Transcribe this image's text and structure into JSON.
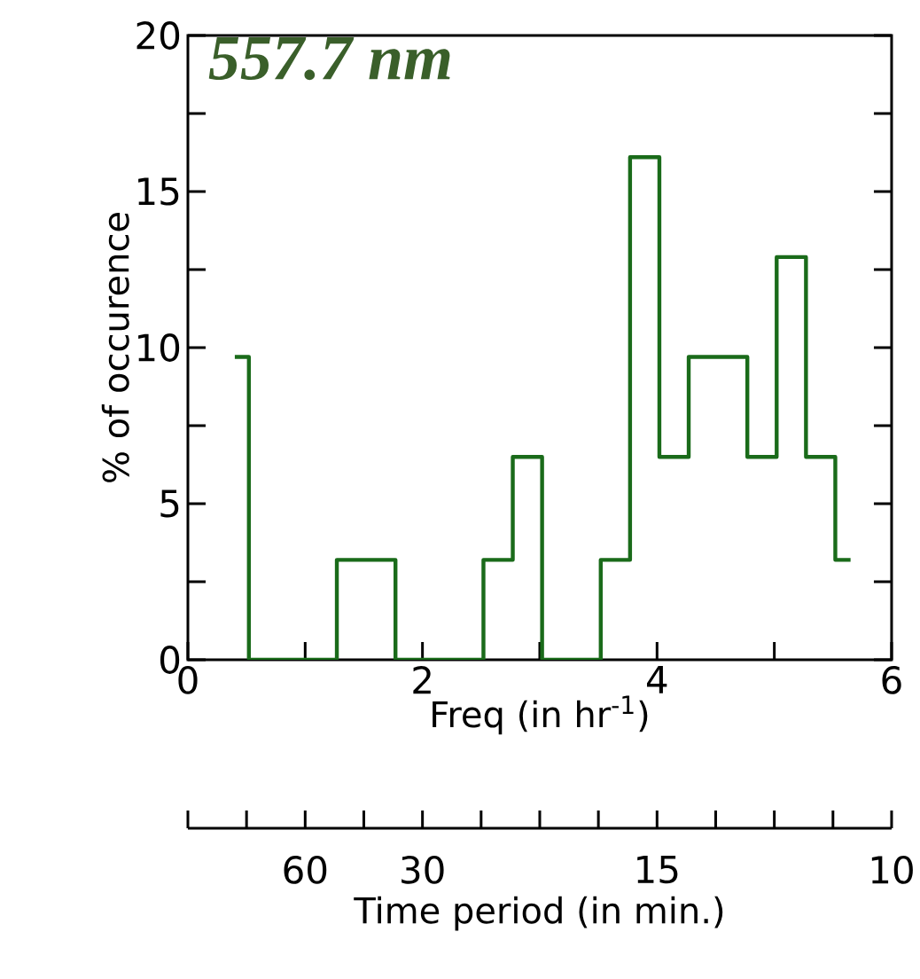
{
  "chart_data": {
    "type": "histogram",
    "title": "557.7 nm",
    "xlabel": "Freq (in hr$^{-1}$)",
    "ylabel": "% of occurence",
    "x2label": "Time period (in min.)",
    "bins": [
      0.4,
      0.52,
      0.77,
      1.02,
      1.27,
      1.52,
      1.77,
      2.02,
      2.27,
      2.52,
      2.77,
      3.02,
      3.27,
      3.52,
      3.77,
      4.02,
      4.27,
      4.52,
      4.77,
      5.02,
      5.27,
      5.52,
      5.65
    ],
    "values": [
      9.7,
      0,
      0,
      0,
      3.2,
      3.2,
      0,
      0,
      0,
      3.2,
      6.5,
      0,
      0,
      3.2,
      16.1,
      6.5,
      9.7,
      9.7,
      6.5,
      12.9,
      6.5,
      3.2
    ],
    "color": "#1a6b1a",
    "xlim": [
      0,
      6
    ],
    "xticks": [
      0,
      {
        "value": 1,
        "label": null
      },
      2,
      {
        "value": 3,
        "label": null
      },
      4,
      {
        "value": 5,
        "label": null
      },
      6
    ],
    "ylim": [
      0,
      20
    ],
    "yticks": [
      0,
      {
        "value": 2.5,
        "label": null
      },
      5,
      {
        "value": 7.5,
        "label": null
      },
      10,
      {
        "value": 12.5,
        "label": null
      },
      15,
      {
        "value": 17.5,
        "label": null
      },
      20
    ],
    "annotations": [
      {
        "text": "60",
        "x": 1
      },
      {
        "text": "30",
        "x": 2
      },
      {
        "text": "15",
        "x": 4
      },
      "10"
    ]
  }
}
